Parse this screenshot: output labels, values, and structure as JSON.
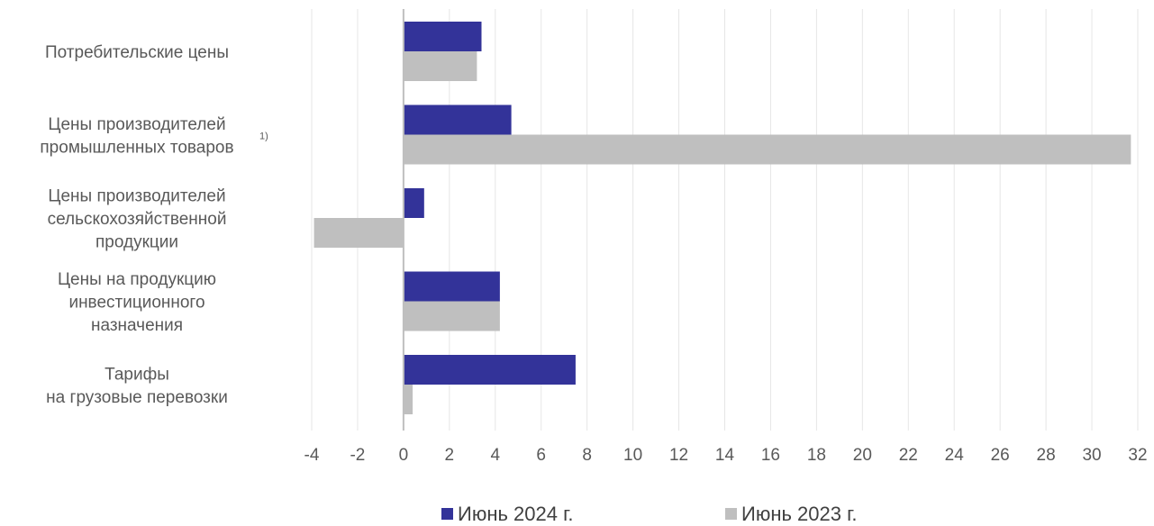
{
  "chart_data": {
    "type": "bar",
    "orientation": "horizontal",
    "categories": [
      {
        "lines": [
          "Потребительские цены"
        ],
        "footnote": ""
      },
      {
        "lines": [
          "Цены производителей",
          "промышленных товаров"
        ],
        "footnote": "1)"
      },
      {
        "lines": [
          "Цены производителей",
          "сельскохозяйственной",
          "продукции"
        ],
        "footnote": ""
      },
      {
        "lines": [
          "Цены на продукцию",
          "инвестиционного",
          "назначения"
        ],
        "footnote": ""
      },
      {
        "lines": [
          "Тарифы",
          "на грузовые перевозки"
        ],
        "footnote": ""
      }
    ],
    "series": [
      {
        "name": "Июнь 2024 г.",
        "color": "#333399",
        "values": [
          3.4,
          4.7,
          0.9,
          4.2,
          7.5
        ]
      },
      {
        "name": "Июнь 2023 г.",
        "color": "#bfbfbf",
        "values": [
          3.2,
          31.7,
          -3.9,
          4.2,
          0.4
        ]
      }
    ],
    "xlim": [
      -4,
      32
    ],
    "xticks": [
      "-4",
      "-2",
      "0",
      "2",
      "4",
      "6",
      "8",
      "10",
      "12",
      "14",
      "16",
      "18",
      "20",
      "22",
      "24",
      "26",
      "28",
      "30",
      "32"
    ],
    "grid": true,
    "legend_position": "bottom"
  }
}
